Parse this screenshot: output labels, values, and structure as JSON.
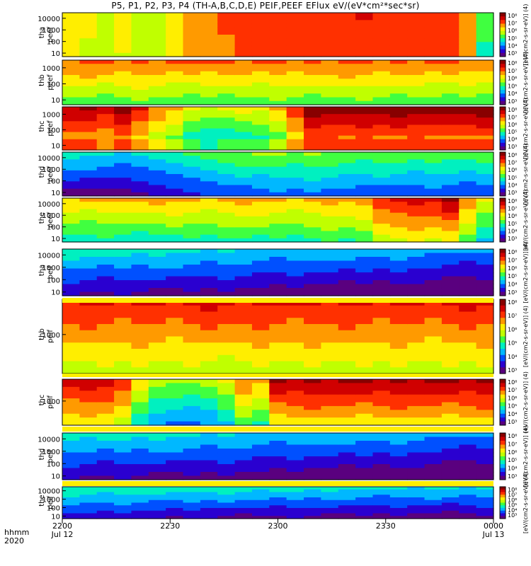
{
  "title": "P5, P1, P2, P3, P4 (TH-A,B,C,D,E) PEIF,PEEF EFlux eV/(eV*cm²*sec*sr)",
  "colorbar_label_lines": [
    "[eV/(cm2-s-sr-eV)] (4)",
    "[eV/(cm2-s-sr-eV)] (4)",
    "[eV/(cm2-s-sr-eV)] (4)",
    "[eV/(cm2-s-sr-eV)] (4)",
    "[eV/(cm2-s-sr-eV)] (4)",
    "[eV/(cm2-s-sr-eV)] (4)",
    "[eV/(cm2-s-sr-eV)] (4)",
    "[eV/(cm2-s-sr-eV)] (4)",
    "[eV/(cm2-s-sr-eV)] (4)",
    "[eV/(cm2-s-sr-eV)] (4)"
  ],
  "colors": {
    "colormap": [
      "#5a007f",
      "#2a00d0",
      "#0050ff",
      "#00b8ff",
      "#00f0c0",
      "#40ff40",
      "#c0ff00",
      "#ffee00",
      "#ff9a00",
      "#ff3000",
      "#d00000",
      "#880000"
    ]
  },
  "chart_data": {
    "type": "heatmap",
    "title": "P5, P1, P2, P3, P4 (TH-A,B,C,D,E) PEIF,PEEF EFlux eV/(eV*cm²*sec*sr)",
    "x_label_rows": [
      "hhmm",
      "2020"
    ],
    "x_ticks": [
      {
        "label": "2200",
        "sub": "Jul 12"
      },
      {
        "label": "2230",
        "sub": ""
      },
      {
        "label": "2300",
        "sub": ""
      },
      {
        "label": "2330",
        "sub": ""
      },
      {
        "label": "0000",
        "sub": "Jul 13"
      }
    ],
    "x_range_minutes": [
      0,
      120
    ],
    "panels": [
      {
        "probe": "tha",
        "product": "peef",
        "ylim": [
          5,
          30000
        ],
        "ytick_labels": [
          "10000",
          "1000",
          "100",
          "10"
        ],
        "colorbar": {
          "labels": [
            "10⁸",
            "10⁷",
            "10⁶",
            "10⁵",
            "10⁴",
            "10³"
          ]
        },
        "levels": [
          8.0,
          7.8,
          7.6,
          7.9,
          7.4,
          7.5,
          8.2,
          8.9,
          9.4,
          9.6,
          9.8,
          10.0,
          10.1,
          10.0,
          10.2,
          10.3,
          10.1,
          10.4,
          10.3,
          10.2,
          10.3,
          10.2,
          10.1,
          9.0,
          6.0
        ]
      },
      {
        "probe": "thb",
        "product": "peef",
        "ylim": [
          5,
          3000
        ],
        "ytick_labels": [
          "1000",
          "100",
          "10"
        ],
        "colorbar": {
          "labels": [
            "10⁸",
            "10⁷",
            "10⁶",
            "10⁵",
            "10⁴",
            "10³"
          ]
        },
        "levels": [
          8.0,
          8.2,
          8.0,
          8.1,
          8.2,
          8.0,
          8.1,
          8.0,
          8.2,
          8.1,
          8.0,
          8.1,
          8.2,
          8.0,
          8.1,
          8.0,
          8.2,
          8.1,
          8.0,
          8.1,
          8.0,
          8.1,
          8.0,
          8.1,
          8.0
        ]
      },
      {
        "probe": "thc",
        "product": "peef",
        "ylim": [
          5,
          3000
        ],
        "ytick_labels": [
          "1000",
          "100",
          "10"
        ],
        "colorbar": {
          "labels": [
            "10⁸",
            "10⁷",
            "10⁶",
            "10⁵",
            "10⁴",
            "10³"
          ]
        },
        "levels": [
          9.8,
          10.0,
          9.6,
          10.2,
          9.3,
          8.0,
          7.3,
          6.4,
          6.0,
          6.2,
          6.5,
          6.6,
          7.2,
          9.0,
          10.6,
          10.5,
          10.4,
          10.5,
          10.3,
          10.4,
          10.5,
          10.4,
          10.3,
          10.5,
          10.4
        ]
      },
      {
        "probe": "thd",
        "product": "peef",
        "ylim": [
          5,
          30000
        ],
        "ytick_labels": [
          "10000",
          "1000",
          "100",
          "10"
        ],
        "colorbar": {
          "labels": [
            "10⁸",
            "10⁷",
            "10⁶",
            "10⁵",
            "10⁴",
            "10³"
          ]
        },
        "levels": [
          3.8,
          3.6,
          3.5,
          3.4,
          3.6,
          4.0,
          4.4,
          4.6,
          4.8,
          5.0,
          5.2,
          5.4,
          5.5,
          5.3,
          5.6,
          5.4,
          5.2,
          5.0,
          5.1,
          5.2,
          5.0,
          5.3,
          5.1,
          5.0,
          5.2
        ]
      },
      {
        "probe": "the",
        "product": "peef",
        "ylim": [
          5,
          30000
        ],
        "ytick_labels": [
          "10000",
          "1000",
          "100",
          "10"
        ],
        "colorbar": {
          "labels": [
            "10⁸",
            "10⁷",
            "10⁶",
            "10⁵",
            "10⁴",
            "10³"
          ]
        },
        "levels": [
          7.3,
          7.2,
          7.4,
          7.3,
          7.2,
          7.4,
          7.3,
          7.4,
          7.2,
          7.3,
          7.5,
          7.3,
          7.4,
          7.2,
          7.4,
          7.6,
          7.5,
          7.7,
          8.8,
          9.2,
          9.4,
          9.3,
          9.8,
          8.0,
          6.5
        ]
      },
      {
        "probe": "tha",
        "product": "peif",
        "ylim": [
          5,
          30000
        ],
        "ytick_labels": [
          "10000",
          "1000",
          "100",
          "10"
        ],
        "colorbar": {
          "labels": [
            "10⁸",
            "10⁷",
            "10⁶",
            "10⁵",
            "10⁴",
            "10³"
          ]
        },
        "levels": [
          4.2,
          4.0,
          3.8,
          3.9,
          3.7,
          3.8,
          3.6,
          3.7,
          3.5,
          3.6,
          3.4,
          3.5,
          3.3,
          3.4,
          3.2,
          3.3,
          3.1,
          3.2,
          3.0,
          3.1,
          3.0,
          2.9,
          2.8,
          2.7,
          2.9
        ]
      },
      {
        "probe": "thb",
        "product": "peif",
        "ylim": [
          100,
          8000
        ],
        "ytick_labels": [
          "1000"
        ],
        "colorbar": {
          "labels": [
            "10⁸",
            "10⁷",
            "10⁶",
            "10⁵",
            "10⁴",
            "10³"
          ]
        },
        "levels": [
          9.0,
          9.1,
          9.2,
          9.0,
          9.1,
          9.2,
          9.0,
          9.1,
          9.2,
          9.0,
          9.1,
          9.2,
          9.0,
          9.1,
          9.2,
          9.0,
          9.1,
          9.2,
          9.0,
          9.1,
          9.2,
          9.0,
          9.1,
          9.2,
          9.1
        ]
      },
      {
        "probe": "thc",
        "product": "peif",
        "ylim": [
          100,
          8000
        ],
        "ytick_labels": [
          "1000"
        ],
        "colorbar": {
          "labels": [
            "10⁸",
            "10⁷",
            "10⁶",
            "10⁵",
            "10⁴",
            "10³"
          ]
        },
        "levels": [
          9.6,
          9.8,
          9.7,
          8.8,
          7.0,
          6.0,
          5.6,
          5.5,
          5.8,
          6.6,
          8.0,
          7.5,
          9.8,
          9.9,
          10.0,
          9.9,
          10.0,
          9.8,
          9.9,
          10.0,
          9.9,
          10.0,
          9.8,
          9.9,
          10.0
        ]
      },
      {
        "probe": "thd",
        "product": "peif",
        "ylim": [
          5,
          30000
        ],
        "ytick_labels": [
          "10000",
          "1000",
          "100",
          "10"
        ],
        "colorbar": {
          "labels": [
            "10⁸",
            "10⁷",
            "10⁶",
            "10⁵",
            "10⁴",
            "10³"
          ]
        },
        "levels": [
          4.0,
          3.9,
          3.8,
          3.9,
          3.7,
          3.8,
          3.6,
          3.7,
          3.5,
          3.6,
          3.4,
          3.5,
          3.3,
          3.4,
          3.2,
          3.3,
          3.1,
          3.2,
          3.0,
          3.1,
          3.0,
          2.9,
          2.8,
          2.7,
          2.9
        ]
      },
      {
        "probe": "the",
        "product": "peif",
        "ylim": [
          5,
          30000
        ],
        "ytick_labels": [
          "10000",
          "1000",
          "100",
          "10"
        ],
        "colorbar": {
          "labels": [
            "10⁸",
            "10⁷",
            "10⁶",
            "10⁵",
            "10⁴",
            "10³"
          ]
        },
        "levels": [
          4.4,
          4.3,
          4.2,
          4.3,
          4.1,
          4.2,
          4.0,
          4.1,
          3.9,
          4.0,
          3.8,
          3.9,
          3.8,
          3.9,
          3.7,
          3.8,
          3.6,
          3.7,
          3.6,
          3.7,
          3.5,
          3.6,
          3.4,
          3.5,
          3.7
        ]
      }
    ]
  }
}
